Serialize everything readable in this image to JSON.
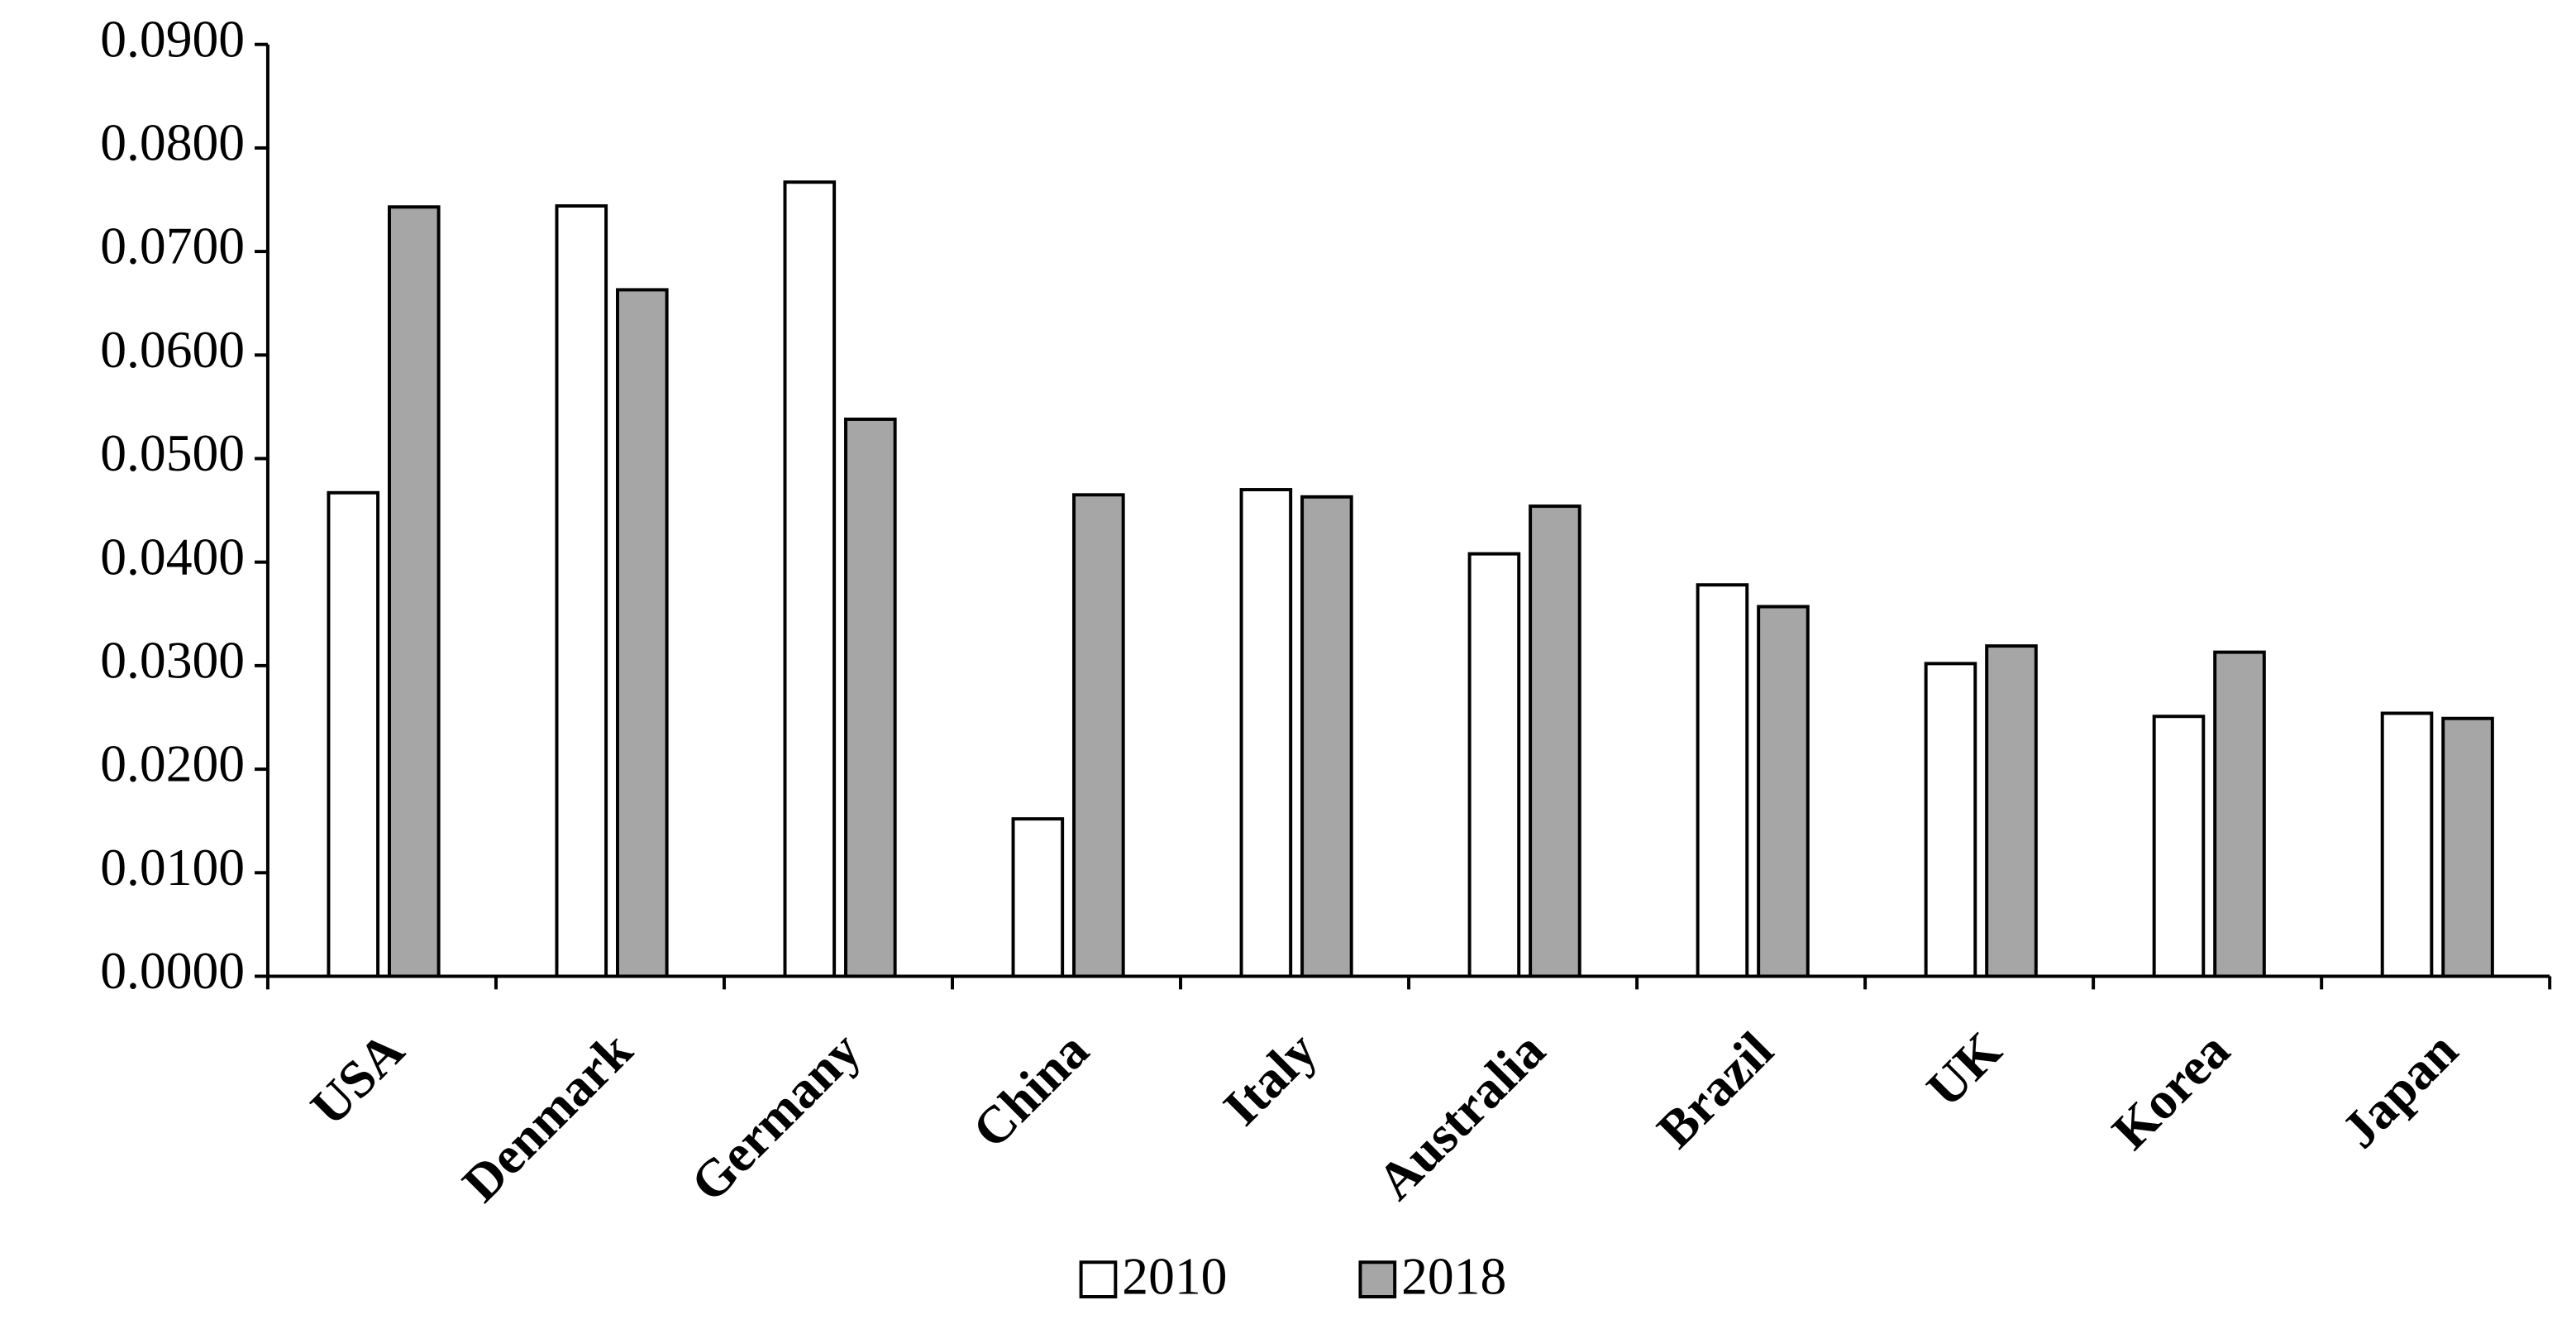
{
  "chart_data": {
    "type": "bar",
    "categories": [
      "USA",
      "Denmark",
      "Germany",
      "China",
      "Italy",
      "Australia",
      "Brazil",
      "UK",
      "Korea",
      "Japan"
    ],
    "series": [
      {
        "name": "2010",
        "color": "#ffffff",
        "values": [
          0.0467,
          0.0744,
          0.0767,
          0.0152,
          0.047,
          0.0408,
          0.0378,
          0.0302,
          0.0251,
          0.0254
        ]
      },
      {
        "name": "2018",
        "color": "#a6a6a6",
        "values": [
          0.0743,
          0.0663,
          0.0538,
          0.0465,
          0.0463,
          0.0454,
          0.0357,
          0.0319,
          0.0313,
          0.0249
        ]
      }
    ],
    "ylim": [
      0,
      0.09
    ],
    "yticks": [
      {
        "value": 0,
        "label": "0.0000"
      },
      {
        "value": 0.01,
        "label": "0.0100"
      },
      {
        "value": 0.02,
        "label": "0.0200"
      },
      {
        "value": 0.03,
        "label": "0.0300"
      },
      {
        "value": 0.04,
        "label": "0.0400"
      },
      {
        "value": 0.05,
        "label": "0.0500"
      },
      {
        "value": 0.06,
        "label": "0.0600"
      },
      {
        "value": 0.07,
        "label": "0.0700"
      },
      {
        "value": 0.08,
        "label": "0.0800"
      },
      {
        "value": 0.09,
        "label": "0.0900"
      }
    ],
    "legend": "bottom"
  }
}
